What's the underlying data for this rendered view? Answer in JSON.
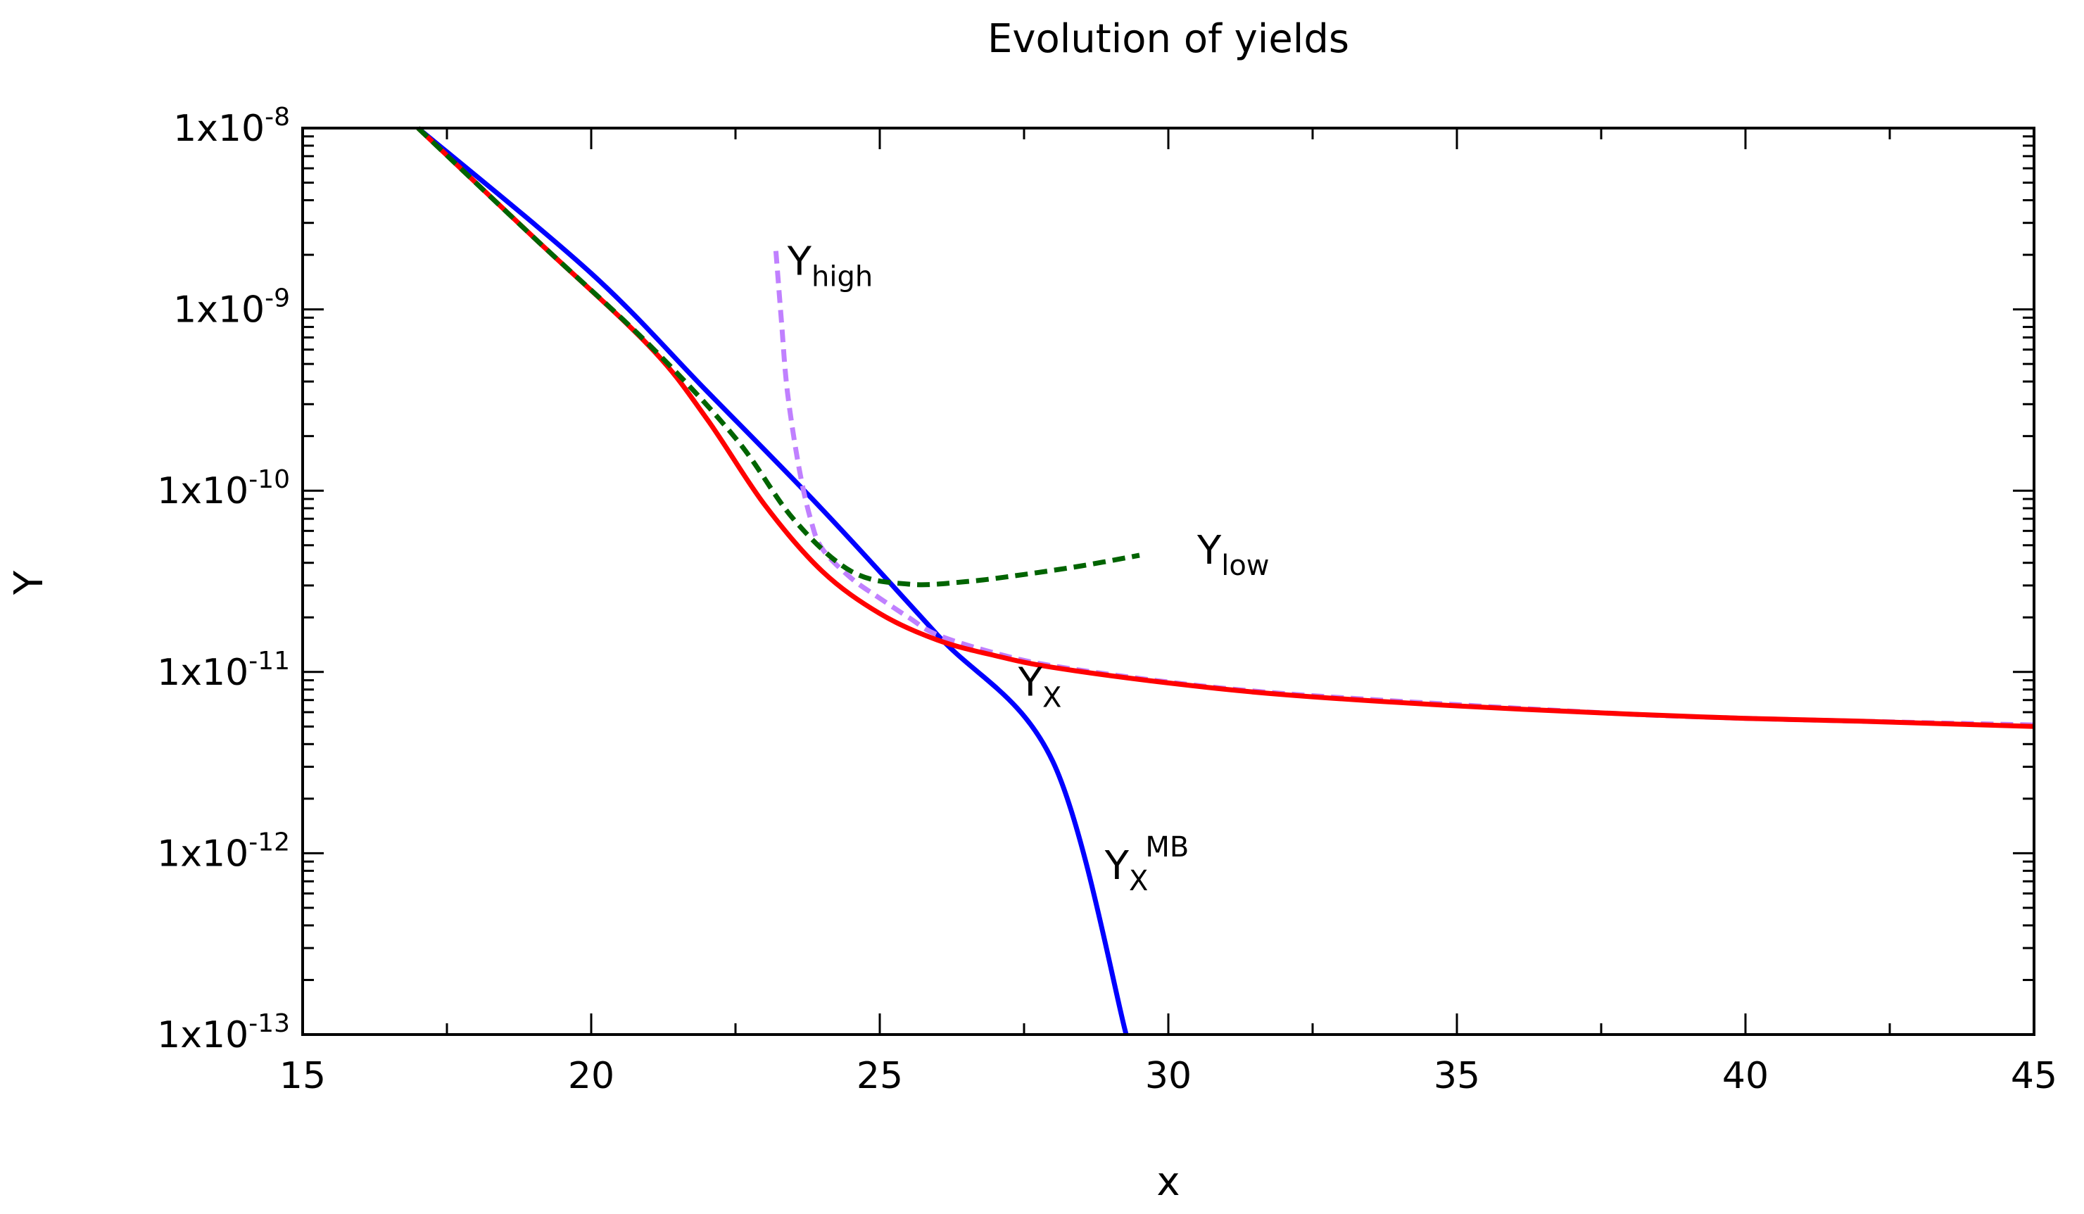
{
  "chart_data": {
    "type": "line",
    "title": "Evolution of yields",
    "xlabel": "x",
    "ylabel": "Y",
    "xscale": "linear",
    "yscale": "log",
    "xlim": [
      15,
      45
    ],
    "ylim": [
      1e-13,
      1e-08
    ],
    "grid": false,
    "x_ticks": [
      15,
      20,
      25,
      30,
      35,
      40,
      45
    ],
    "x_tick_labels": [
      "15",
      "20",
      "25",
      "30",
      "35",
      "40",
      "45"
    ],
    "y_ticks": [
      {
        "value": 1e-08,
        "base": "1x10",
        "exp": "-8"
      },
      {
        "value": 1e-09,
        "base": "1x10",
        "exp": "-9"
      },
      {
        "value": 1e-10,
        "base": "1x10",
        "exp": "-10"
      },
      {
        "value": 1e-11,
        "base": "1x10",
        "exp": "-11"
      },
      {
        "value": 1e-12,
        "base": "1x10",
        "exp": "-12"
      },
      {
        "value": 1e-13,
        "base": "1x10",
        "exp": "-13"
      }
    ],
    "series": [
      {
        "name": "Y_X^MB",
        "color": "#0000ff",
        "style": "solid",
        "x": [
          17,
          20,
          22,
          24,
          26,
          28,
          29.27
        ],
        "y": [
          1e-08,
          1.58e-09,
          3.55e-10,
          7.9e-11,
          1.6e-11,
          3.2e-12,
          1e-13
        ]
      },
      {
        "name": "Y_X",
        "color": "#ff0000",
        "style": "solid",
        "x": [
          17,
          19,
          21,
          22,
          23,
          24,
          25,
          26,
          27,
          28,
          30,
          32,
          35,
          38,
          40,
          42,
          45
        ],
        "y": [
          1e-08,
          2.5e-09,
          6.3e-10,
          2.5e-10,
          8.4e-11,
          3.6e-11,
          2.1e-11,
          1.5e-11,
          1.23e-11,
          1.06e-11,
          8.7e-12,
          7.5e-12,
          6.5e-12,
          5.85e-12,
          5.55e-12,
          5.35e-12,
          5e-12
        ]
      },
      {
        "name": "Y_high",
        "color": "#c080ff",
        "style": "dashed",
        "x": [
          23.2,
          23.3,
          23.4,
          23.6,
          23.8,
          24,
          24.5,
          25,
          25.5,
          26,
          27,
          28,
          30,
          32,
          35,
          38,
          40,
          42,
          45
        ],
        "y": [
          2.1e-09,
          8.3e-10,
          3.5e-10,
          1.34e-10,
          7e-11,
          4.8e-11,
          3.3e-11,
          2.55e-11,
          2e-11,
          1.6e-11,
          1.27e-11,
          1.08e-11,
          8.8e-12,
          7.6e-12,
          6.6e-12,
          5.85e-12,
          5.55e-12,
          5.35e-12,
          5.1e-12
        ]
      },
      {
        "name": "Y_low",
        "color": "#006400",
        "style": "dashed",
        "x": [
          17,
          19,
          21,
          22.5,
          23.5,
          24.5,
          25.5,
          26.5,
          27.5,
          28.5,
          29.5
        ],
        "y": [
          1e-08,
          2.5e-09,
          6.4e-10,
          1.95e-10,
          7e-11,
          3.6e-11,
          3.05e-11,
          3.15e-11,
          3.45e-11,
          3.85e-11,
          4.4e-11
        ]
      }
    ],
    "annotations": [
      {
        "series": "Y_high",
        "main": "Y",
        "sub": "high",
        "sup": "",
        "x": 23.4,
        "y": 1.55e-09
      },
      {
        "series": "Y_low",
        "main": "Y",
        "sub": "low",
        "sup": "",
        "x": 30.5,
        "y": 3.95e-11
      },
      {
        "series": "Y_X",
        "main": "Y",
        "sub": "X",
        "sup": "",
        "x": 27.4,
        "y": 7.4e-12
      },
      {
        "series": "Y_X^MB",
        "main": "Y",
        "sub": "X",
        "sup": "MB",
        "x": 28.9,
        "y": 7.2e-13
      }
    ]
  }
}
